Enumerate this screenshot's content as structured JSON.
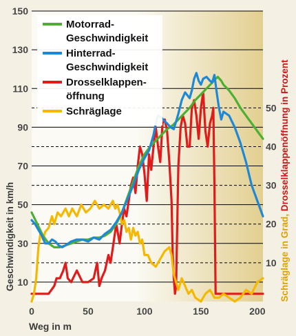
{
  "chart_data": {
    "type": "line",
    "xlabel": "Weg in m",
    "ylabel_left": "Geschwindigkeit in km/h",
    "ylabel_right_prefix": "Schräglage in Grad, ",
    "ylabel_right_suffix": "Drosselklappenöffnung in Prozent",
    "x_ticks": [
      "0",
      "50",
      "100",
      "150",
      "200"
    ],
    "x_tick_values": [
      0,
      50,
      100,
      150,
      200
    ],
    "y_left_ticks": [
      "10",
      "30",
      "50",
      "70",
      "90",
      "110",
      "130",
      "150"
    ],
    "y_left_tick_values": [
      10,
      30,
      50,
      70,
      90,
      110,
      130,
      150
    ],
    "y_right_ticks": [
      "10",
      "20",
      "30",
      "40",
      "50"
    ],
    "y_right_tick_values": [
      10,
      20,
      30,
      40,
      50
    ],
    "xlim": [
      0,
      205
    ],
    "ylim_left": [
      0,
      150
    ],
    "ylim_right": [
      0,
      75
    ],
    "legend_placement": "top-left",
    "colors": {
      "motorrad": "#4caf32",
      "hinterrad": "#1e88d6",
      "drossel": "#e01b1b",
      "schraeglage": "#f5b800",
      "right_label_orange": "#e0a000",
      "right_label_red": "#d01818",
      "grid": "#000000",
      "background_light": "#fbfaf4",
      "background_dark": "#e2cf90"
    },
    "series": [
      {
        "name": "Motorrad-\nGeschwindigkeit",
        "key": "motorrad",
        "axis": "left",
        "x": [
          0,
          5,
          10,
          15,
          20,
          25,
          30,
          35,
          40,
          45,
          50,
          55,
          60,
          65,
          70,
          75,
          80,
          85,
          90,
          95,
          100,
          105,
          110,
          115,
          120,
          125,
          130,
          135,
          140,
          145,
          150,
          155,
          160,
          163,
          165,
          168,
          170,
          175,
          180,
          185,
          190,
          195,
          200,
          205
        ],
        "y": [
          46,
          40,
          34,
          30,
          28,
          28,
          29,
          30,
          31,
          32,
          32,
          33,
          33,
          34,
          36,
          40,
          46,
          54,
          62,
          70,
          76,
          80,
          83,
          86,
          89,
          91,
          94,
          97,
          100,
          104,
          107,
          110,
          113,
          115,
          116,
          114,
          112,
          109,
          105,
          100,
          96,
          92,
          88,
          84
        ]
      },
      {
        "name": "Hinterrad-\nGeschwindigkeit",
        "key": "hinterrad",
        "axis": "left",
        "x": [
          0,
          3,
          6,
          9,
          12,
          15,
          18,
          21,
          24,
          27,
          30,
          35,
          40,
          45,
          50,
          55,
          60,
          65,
          70,
          75,
          80,
          85,
          90,
          95,
          100,
          104,
          108,
          110,
          112,
          115,
          118,
          120,
          123,
          126,
          130,
          133,
          136,
          140,
          142,
          144,
          146,
          148,
          150,
          152,
          155,
          158,
          160,
          162,
          164,
          166,
          168,
          170,
          175,
          180,
          185,
          190,
          195,
          200,
          205
        ],
        "y": [
          42,
          40,
          37,
          34,
          30,
          30,
          32,
          31,
          29,
          28,
          29,
          31,
          32,
          32,
          31,
          33,
          32,
          35,
          37,
          41,
          46,
          53,
          60,
          68,
          74,
          78,
          86,
          92,
          96,
          95,
          93,
          92,
          90,
          89,
          97,
          104,
          108,
          105,
          109,
          115,
          118,
          114,
          112,
          115,
          116,
          114,
          113,
          117,
          108,
          100,
          94,
          98,
          96,
          90,
          82,
          72,
          60,
          52,
          44
        ]
      },
      {
        "name": "Drosselklappen-\nöffnung",
        "key": "drossel",
        "axis": "right",
        "x": [
          0,
          5,
          10,
          15,
          20,
          22,
          25,
          28,
          30,
          32,
          35,
          40,
          45,
          50,
          55,
          58,
          60,
          62,
          65,
          68,
          70,
          72,
          75,
          78,
          80,
          82,
          84,
          86,
          88,
          90,
          92,
          94,
          96,
          98,
          100,
          102,
          104,
          106,
          108,
          110,
          112,
          114,
          116,
          118,
          120,
          122,
          124,
          125,
          126,
          127,
          128,
          130,
          132,
          134,
          136,
          138,
          140,
          142,
          144,
          146,
          148,
          150,
          152,
          154,
          156,
          158,
          160,
          161,
          162,
          163,
          164,
          170,
          180,
          190,
          200,
          205
        ],
        "y": [
          2,
          2,
          2,
          2,
          4,
          6,
          6,
          8,
          10,
          6,
          5,
          8,
          5,
          5,
          6,
          10,
          4,
          6,
          8,
          12,
          10,
          14,
          20,
          15,
          20,
          24,
          22,
          26,
          30,
          32,
          28,
          35,
          40,
          38,
          33,
          26,
          38,
          34,
          40,
          45,
          40,
          36,
          46,
          47,
          44,
          36,
          26,
          12,
          6,
          2,
          4,
          35,
          45,
          48,
          46,
          40,
          40,
          50,
          52,
          48,
          42,
          50,
          54,
          44,
          40,
          46,
          48,
          50,
          30,
          2,
          2,
          2,
          2,
          2,
          2,
          2
        ]
      },
      {
        "name": "Schräglage",
        "key": "schraeglage",
        "axis": "right",
        "x": [
          0,
          2,
          4,
          6,
          8,
          10,
          12,
          15,
          18,
          20,
          23,
          26,
          30,
          33,
          36,
          40,
          44,
          48,
          52,
          56,
          60,
          64,
          68,
          72,
          74,
          76,
          78,
          80,
          82,
          84,
          86,
          88,
          90,
          92,
          94,
          96,
          98,
          100,
          103,
          106,
          110,
          114,
          118,
          122,
          124,
          126,
          128,
          130,
          133,
          136,
          139,
          142,
          145,
          150,
          154,
          158,
          162,
          166,
          170,
          175,
          180,
          185,
          190,
          195,
          200,
          205
        ],
        "y": [
          0,
          2,
          6,
          14,
          18,
          16,
          18,
          19,
          22,
          20,
          23,
          22,
          24,
          22,
          24,
          22,
          25,
          23,
          24,
          26,
          24,
          25,
          24,
          26,
          24,
          25,
          23,
          20,
          21,
          18,
          19,
          16,
          19,
          17,
          18,
          15,
          16,
          12,
          12,
          10,
          9,
          11,
          13,
          14,
          12,
          7,
          5,
          3,
          6,
          4,
          2,
          3,
          1,
          0,
          2,
          3,
          1,
          1,
          2,
          1,
          0,
          1,
          3,
          2,
          5,
          6
        ]
      }
    ]
  }
}
